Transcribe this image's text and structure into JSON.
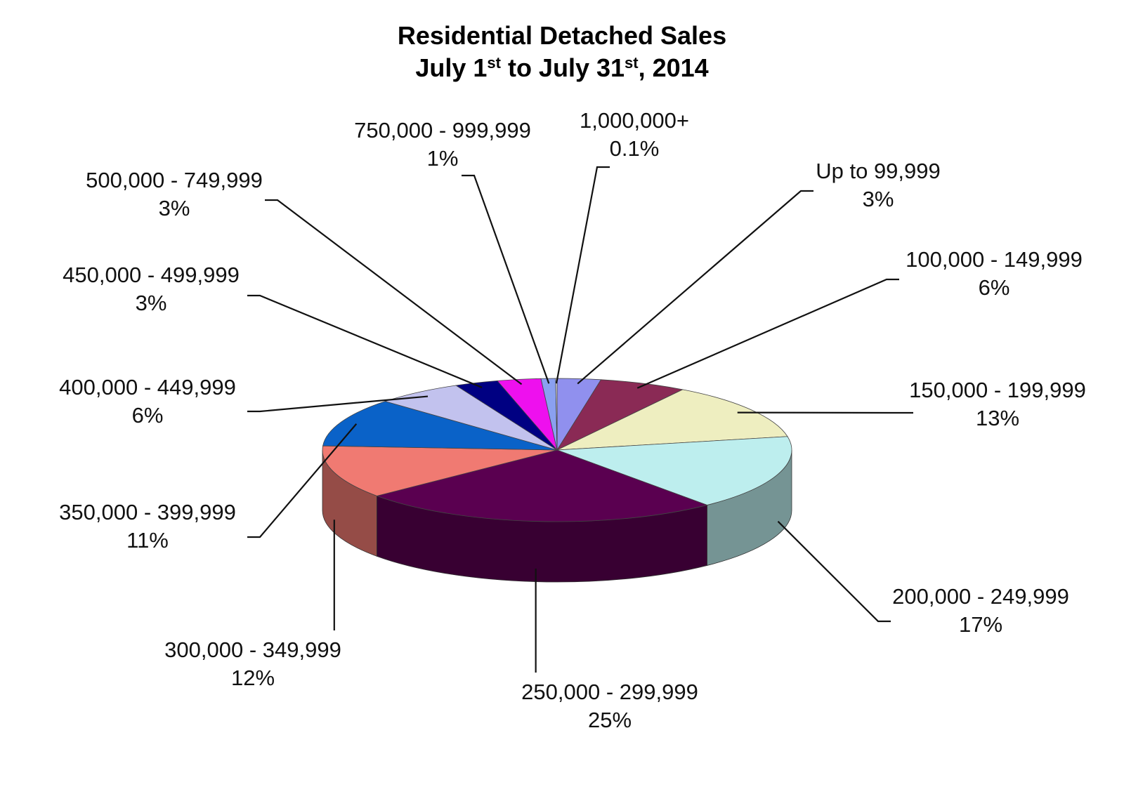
{
  "title": {
    "line1": "Residential Detached Sales",
    "line2_a": "July 1",
    "line2_sup1": "st",
    "line2_b": " to July 31",
    "line2_sup2": "st",
    "line2_c": ", 2014"
  },
  "chart_data": {
    "type": "pie",
    "three_d": true,
    "legend": "none",
    "slices": [
      {
        "label": "Up to 99,999",
        "value_label": "3%",
        "value": 3,
        "color": "#9090ee"
      },
      {
        "label": "100,000 - 149,999",
        "value_label": "6%",
        "value": 6,
        "color": "#8a2a55"
      },
      {
        "label": "150,000 - 199,999",
        "value_label": "13%",
        "value": 13,
        "color": "#eeeec0"
      },
      {
        "label": "200,000 - 249,999",
        "value_label": "17%",
        "value": 17,
        "color": "#bdeeee"
      },
      {
        "label": "250,000 - 299,999",
        "value_label": "25%",
        "value": 25,
        "color": "#5a0050"
      },
      {
        "label": "300,000 - 349,999",
        "value_label": "12%",
        "value": 12,
        "color": "#f07a72"
      },
      {
        "label": "350,000 - 399,999",
        "value_label": "11%",
        "value": 11,
        "color": "#0a62c8"
      },
      {
        "label": "400,000 - 449,999",
        "value_label": "6%",
        "value": 6,
        "color": "#c2c2ee"
      },
      {
        "label": "450,000 - 499,999",
        "value_label": "3%",
        "value": 3,
        "color": "#000082"
      },
      {
        "label": "500,000 - 749,999",
        "value_label": "3%",
        "value": 3,
        "color": "#ee10ee"
      },
      {
        "label": "750,000 - 999,999",
        "value_label": "1%",
        "value": 1,
        "color": "#8aa0f0"
      },
      {
        "label": "1,000,000+",
        "value_label": "0.1%",
        "value": 0.1,
        "color": "#ffffff"
      }
    ]
  }
}
